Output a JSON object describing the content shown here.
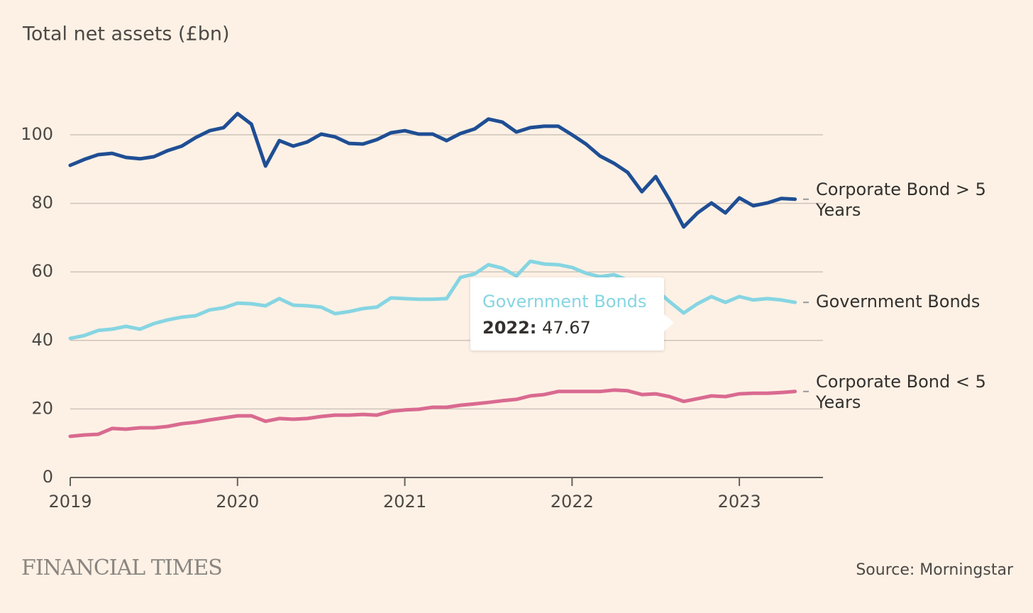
{
  "chart_data": {
    "type": "line",
    "title": "Total net assets (£bn)",
    "source": "Source: Morningstar",
    "logo": "FINANCIAL TIMES",
    "x": [
      2019,
      2019.083,
      2019.167,
      2019.25,
      2019.333,
      2019.417,
      2019.5,
      2019.583,
      2019.667,
      2019.75,
      2019.833,
      2019.917,
      2020,
      2020.083,
      2020.167,
      2020.25,
      2020.333,
      2020.417,
      2020.5,
      2020.583,
      2020.667,
      2020.75,
      2020.833,
      2020.917,
      2021,
      2021.083,
      2021.167,
      2021.25,
      2021.333,
      2021.417,
      2021.5,
      2021.583,
      2021.667,
      2021.75,
      2021.833,
      2021.917,
      2022,
      2022.083,
      2022.167,
      2022.25,
      2022.333,
      2022.417,
      2022.5,
      2022.583,
      2022.667,
      2022.75,
      2022.833,
      2022.917,
      2023,
      2023.083,
      2023.167,
      2023.25,
      2023.333
    ],
    "series": [
      {
        "name": "Corporate Bond > 5 Years",
        "color": "#1f4e94",
        "values": [
          91.1,
          92.8,
          94.2,
          94.6,
          93.4,
          93.0,
          93.6,
          95.4,
          96.7,
          99.2,
          101.2,
          102.1,
          106.2,
          103.1,
          90.9,
          98.3,
          96.7,
          97.9,
          100.2,
          99.4,
          97.5,
          97.3,
          98.6,
          100.6,
          101.2,
          100.2,
          100.2,
          98.3,
          100.4,
          101.7,
          104.6,
          103.7,
          100.8,
          102.1,
          102.5,
          102.5,
          100.0,
          97.3,
          93.8,
          91.7,
          89.0,
          83.4,
          87.8,
          81.0,
          73.1,
          77.2,
          80.1,
          77.2,
          81.6,
          79.3,
          80.1,
          81.4,
          81.2
        ]
      },
      {
        "name": "Government Bonds",
        "color": "#86d5e2",
        "values": [
          40.6,
          41.4,
          42.9,
          43.3,
          44.1,
          43.3,
          44.9,
          46.0,
          46.8,
          47.2,
          48.9,
          49.5,
          50.9,
          50.7,
          50.1,
          52.2,
          50.3,
          50.1,
          49.7,
          47.8,
          48.4,
          49.3,
          49.7,
          52.4,
          52.2,
          52.0,
          52.0,
          52.2,
          58.4,
          59.4,
          62.1,
          61.1,
          58.8,
          63.1,
          62.3,
          62.1,
          61.3,
          59.6,
          58.6,
          59.2,
          57.6,
          56.9,
          54.9,
          51.3,
          48.0,
          50.7,
          52.8,
          51.1,
          52.8,
          51.8,
          52.2,
          51.8,
          51.1
        ]
      },
      {
        "name": "Corporate Bond < 5 Years",
        "color": "#d96a90",
        "values": [
          12.0,
          12.4,
          12.6,
          14.3,
          14.1,
          14.5,
          14.5,
          14.9,
          15.7,
          16.1,
          16.8,
          17.4,
          18.0,
          18.0,
          16.4,
          17.2,
          17.0,
          17.2,
          17.8,
          18.2,
          18.2,
          18.4,
          18.2,
          19.3,
          19.7,
          19.9,
          20.5,
          20.5,
          21.1,
          21.5,
          21.9,
          22.4,
          22.8,
          23.8,
          24.2,
          25.1,
          25.1,
          25.1,
          25.1,
          25.5,
          25.3,
          24.2,
          24.4,
          23.6,
          22.2,
          23.0,
          23.8,
          23.6,
          24.4,
          24.6,
          24.6,
          24.8,
          25.1
        ]
      }
    ],
    "xlim": [
      2019,
      2023.5
    ],
    "xticks": [
      2019,
      2020,
      2021,
      2022,
      2023
    ],
    "ylim": [
      0,
      110
    ],
    "yticks": [
      0,
      20,
      40,
      60,
      80,
      100
    ],
    "grid": true,
    "tooltip": {
      "title": "Government Bonds",
      "label": "2022:",
      "value": 47.67
    }
  }
}
